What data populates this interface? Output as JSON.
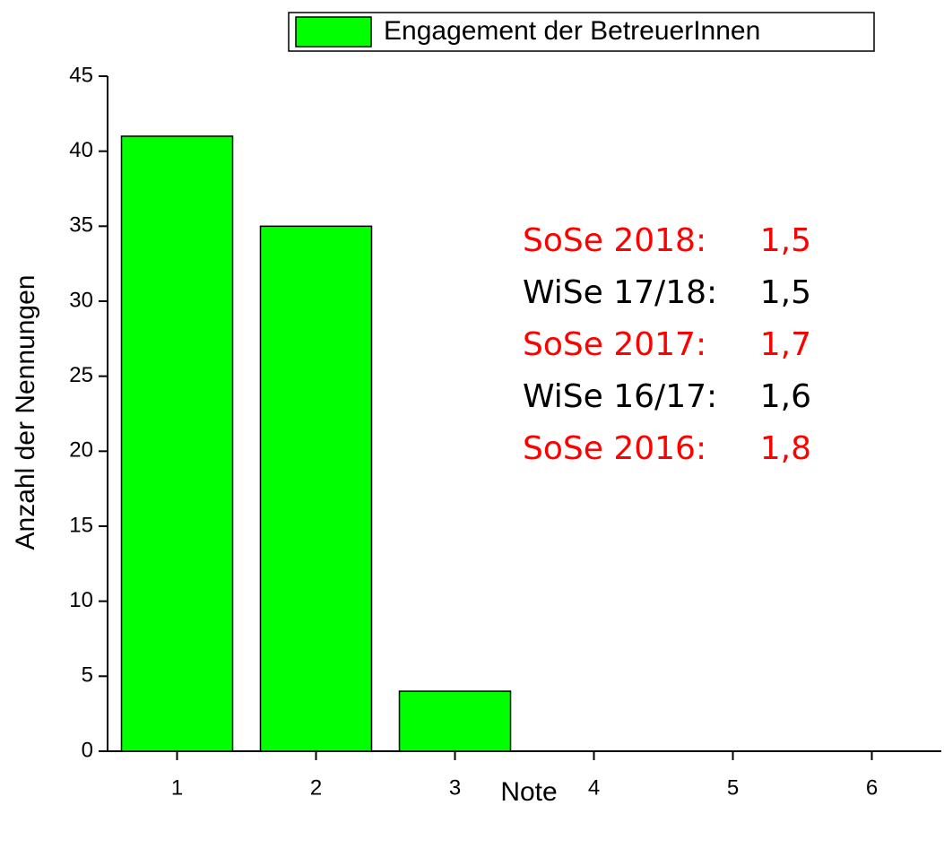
{
  "chart_data": {
    "type": "bar",
    "x": [
      1,
      2,
      3,
      4,
      5,
      6
    ],
    "values": [
      41,
      35,
      4,
      0,
      0,
      0
    ],
    "series_name": "Engagement der BetreuerInnen",
    "color": "#00ff00",
    "xlabel": "Note",
    "ylabel": "Anzahl der Nennungen",
    "xlim": [
      0.5,
      6.5
    ],
    "xticks": [
      1,
      2,
      3,
      4,
      5,
      6
    ],
    "ylim": [
      0,
      45
    ],
    "yticks": [
      0,
      5,
      10,
      15,
      20,
      25,
      30,
      35,
      40,
      45
    ],
    "legend": "top",
    "annotations": [
      {
        "label": "SoSe 2018:",
        "value": "1,5",
        "color": "#ff0000"
      },
      {
        "label": "WiSe 17/18:",
        "value": "1,5",
        "color": "#000000"
      },
      {
        "label": "SoSe 2017:",
        "value": "1,7",
        "color": "#ff0000"
      },
      {
        "label": "WiSe 16/17:",
        "value": "1,6",
        "color": "#000000"
      },
      {
        "label": "SoSe 2016:",
        "value": "1,8",
        "color": "#ff0000"
      }
    ]
  }
}
